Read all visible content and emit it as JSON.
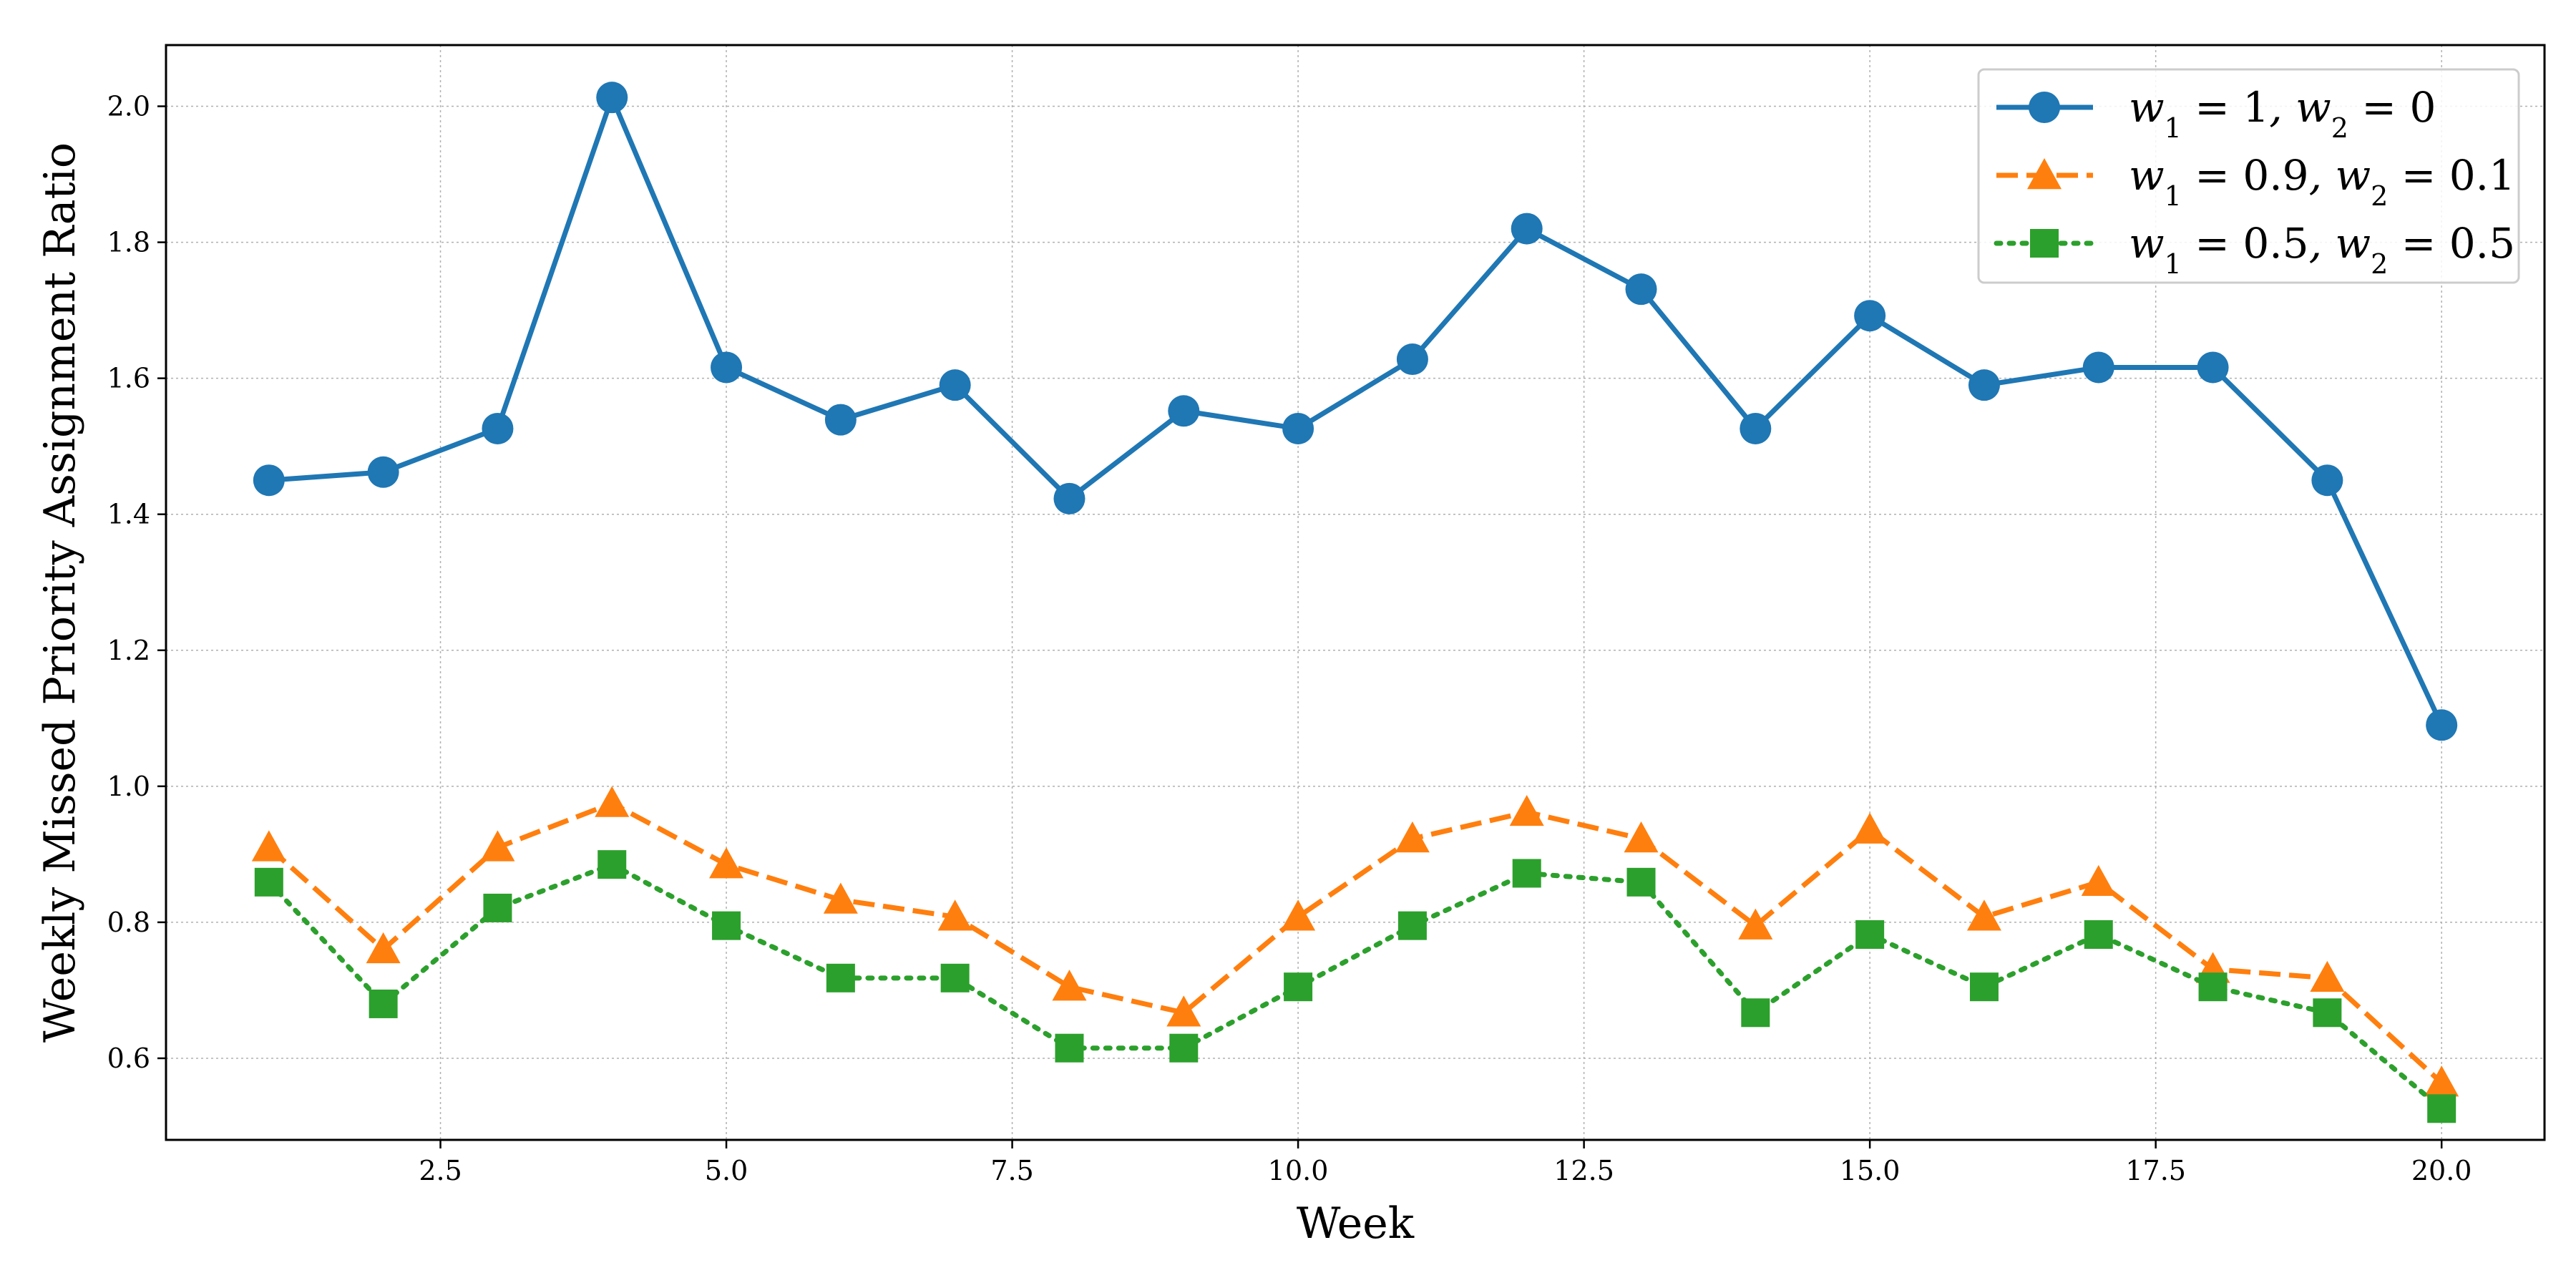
{
  "chart_data": {
    "type": "line",
    "title": "",
    "xlabel": "Week",
    "ylabel": "Weekly Missed Priority Assignment Ratio",
    "xlim": [
      0.1,
      20.9
    ],
    "ylim": [
      0.48,
      2.09
    ],
    "xticks": [
      2.5,
      5.0,
      7.5,
      10.0,
      12.5,
      15.0,
      17.5,
      20.0
    ],
    "xtick_labels": [
      "2.5",
      "5.0",
      "7.5",
      "10.0",
      "12.5",
      "15.0",
      "17.5",
      "20.0"
    ],
    "yticks": [
      0.6,
      0.8,
      1.0,
      1.2,
      1.4,
      1.6,
      1.8,
      2.0
    ],
    "ytick_labels": [
      "0.6",
      "0.8",
      "1.0",
      "1.2",
      "1.4",
      "1.6",
      "1.8",
      "2.0"
    ],
    "grid": true,
    "legend_position": "top-right",
    "x": [
      1,
      2,
      3,
      4,
      5,
      6,
      7,
      8,
      9,
      10,
      11,
      12,
      13,
      14,
      15,
      16,
      17,
      18,
      19,
      20
    ],
    "series": [
      {
        "name": "w1 = 1, w2 = 0",
        "color": "#1f77b4",
        "marker": "circle",
        "linestyle": "solid",
        "values": [
          1.45,
          1.462,
          1.526,
          2.013,
          1.616,
          1.539,
          1.59,
          1.423,
          1.552,
          1.526,
          1.628,
          1.82,
          1.731,
          1.526,
          1.692,
          1.59,
          1.616,
          1.616,
          1.45,
          1.09
        ]
      },
      {
        "name": "w1 = 0.9, w2 = 0.1",
        "color": "#ff7f0e",
        "marker": "triangle",
        "linestyle": "dashed",
        "values": [
          0.91,
          0.76,
          0.91,
          0.975,
          0.885,
          0.833,
          0.808,
          0.705,
          0.667,
          0.808,
          0.923,
          0.962,
          0.923,
          0.795,
          0.936,
          0.808,
          0.859,
          0.731,
          0.718,
          0.564
        ]
      },
      {
        "name": "w1 = 0.5, w2 = 0.5",
        "color": "#2ca02c",
        "marker": "square",
        "linestyle": "dotted",
        "values": [
          0.859,
          0.68,
          0.821,
          0.885,
          0.795,
          0.718,
          0.718,
          0.615,
          0.615,
          0.705,
          0.795,
          0.872,
          0.859,
          0.667,
          0.782,
          0.705,
          0.782,
          0.705,
          0.667,
          0.526
        ]
      }
    ],
    "legend_labels": [
      {
        "w1": "1",
        "w2": "0"
      },
      {
        "w1": "0.9",
        "w2": "0.1"
      },
      {
        "w1": "0.5",
        "w2": "0.5"
      }
    ]
  }
}
